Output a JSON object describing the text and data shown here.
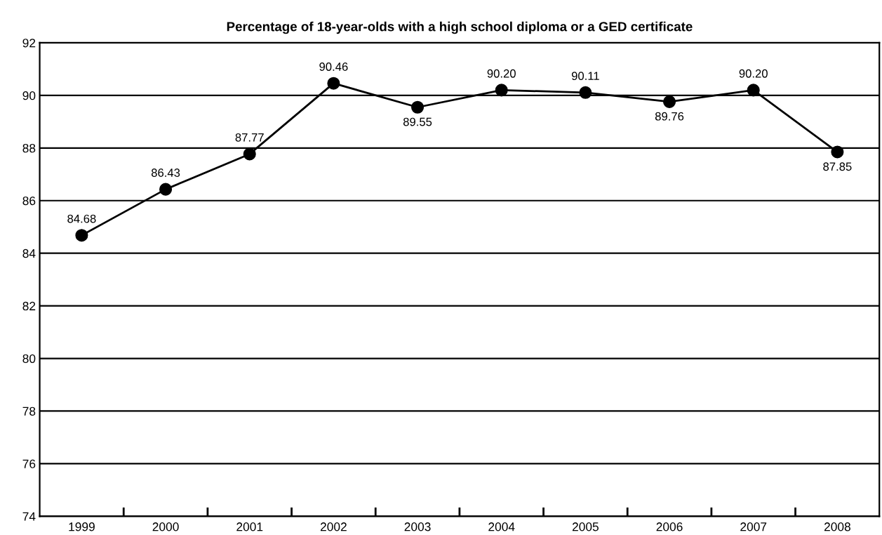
{
  "chart_data": {
    "type": "line",
    "title": "Percentage of 18-year-olds with a high school diploma or a GED certificate",
    "categories": [
      "1999",
      "2000",
      "2001",
      "2002",
      "2003",
      "2004",
      "2005",
      "2006",
      "2007",
      "2008"
    ],
    "series": [
      {
        "color": "#000000",
        "values": [
          84.68,
          86.43,
          87.77,
          90.46,
          89.55,
          90.2,
          90.11,
          89.76,
          90.2,
          87.85
        ],
        "value_labels": [
          "84.68",
          "86.43",
          "87.77",
          "90.46",
          "89.55",
          "90.20",
          "90.11",
          "89.76",
          "90.20",
          "87.85"
        ]
      }
    ],
    "ylim": [
      74,
      92
    ],
    "yticks": [
      74,
      76,
      78,
      80,
      82,
      84,
      86,
      88,
      90,
      92
    ],
    "grid": "y",
    "legend": false,
    "marker": "circle",
    "line_style": "solid"
  }
}
